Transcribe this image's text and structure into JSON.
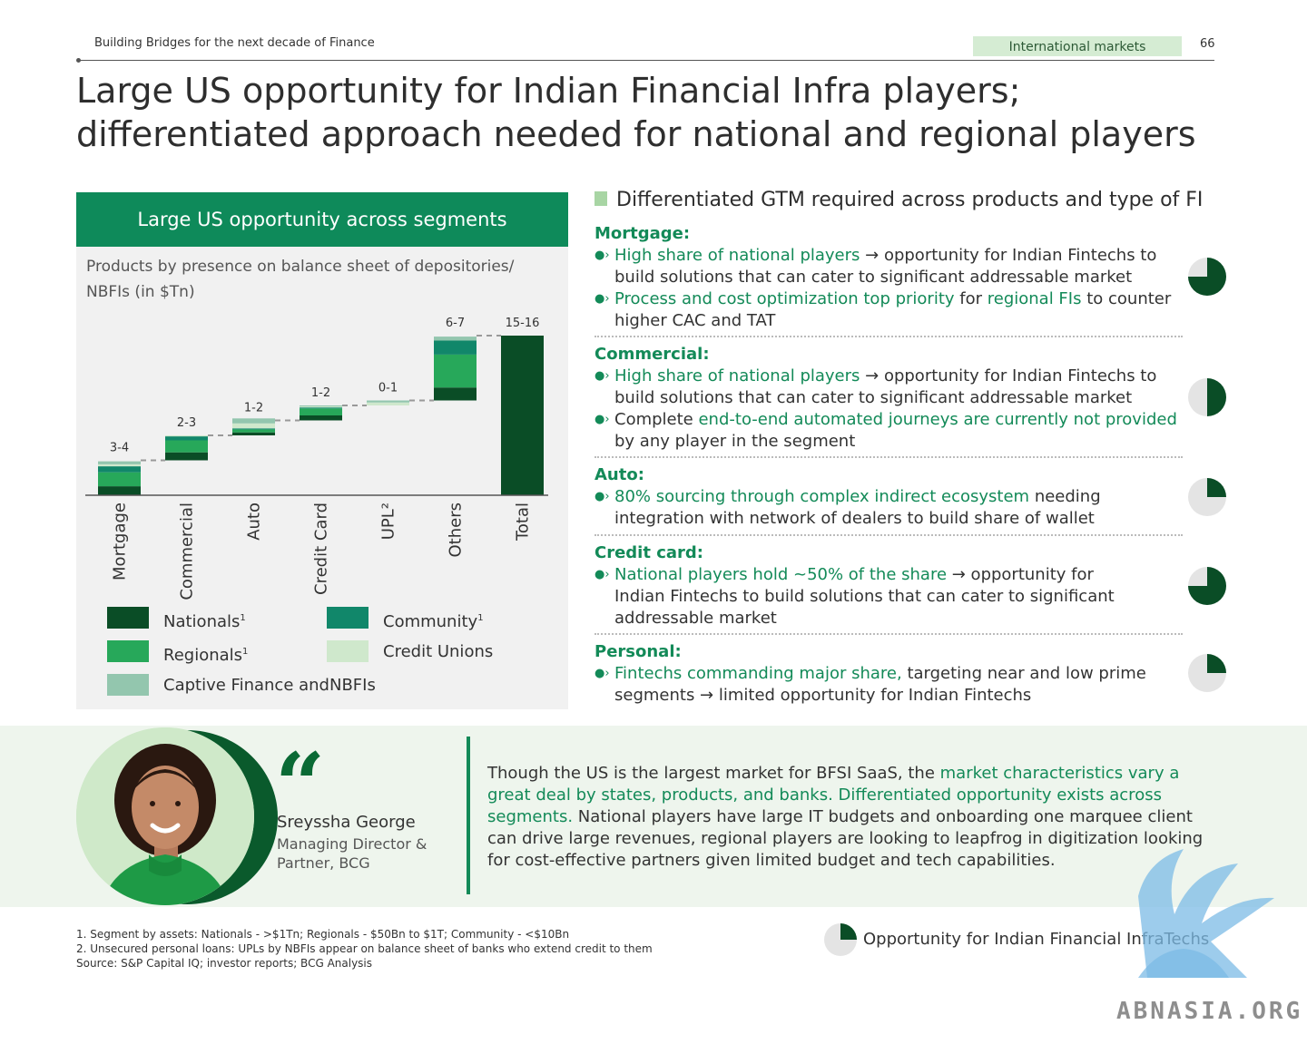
{
  "header": {
    "left": "Building Bridges for the next decade of Finance",
    "tag": "International markets",
    "page_number": "66"
  },
  "title": "Large US opportunity for Indian Financial Infra players; differentiated approach needed for national and regional players",
  "left_panel": {
    "heading": "Large US opportunity across segments",
    "subtitle": "Products by presence on balance sheet of depositories/ NBFIs (in $Tn)",
    "legend": {
      "nationals": "Nationals",
      "community": "Community",
      "regionals": "Regionals",
      "credit_unions": "Credit Unions",
      "captive": "Captive Finance andNBFIs",
      "sup": "1"
    }
  },
  "chart_data": {
    "type": "bar",
    "subtype": "waterfall",
    "categories": [
      "Mortgage",
      "Commercial",
      "Auto",
      "Credit Card",
      "UPL²",
      "Others",
      "Total"
    ],
    "value_labels": [
      "3-4",
      "2-3",
      "1-2",
      "1-2",
      "0-1",
      "6-7",
      "15-16"
    ],
    "values": [
      3.5,
      2.5,
      1.5,
      1.5,
      0.5,
      6.5,
      16
    ],
    "series": [
      {
        "name": "Nationals",
        "color": "#0a4d26",
        "values": [
          0.9,
          0.8,
          0.3,
          0.5,
          0,
          1.3,
          16
        ]
      },
      {
        "name": "Regionals",
        "color": "#27a85a",
        "values": [
          1.4,
          1.2,
          0.3,
          0.7,
          0,
          3.3,
          0
        ]
      },
      {
        "name": "Community",
        "color": "#11876a",
        "values": [
          0.6,
          0.4,
          0.1,
          0.1,
          0,
          1.4,
          0
        ]
      },
      {
        "name": "Credit Unions",
        "color": "#cfe8cc",
        "values": [
          0.2,
          0.1,
          0.5,
          0.1,
          0.3,
          0,
          0
        ]
      },
      {
        "name": "Captive Finance andNBFIs",
        "color": "#93c6ae",
        "values": [
          0.3,
          0,
          0.5,
          0.1,
          0.2,
          0.4,
          0
        ]
      }
    ],
    "ylim": [
      0,
      16
    ]
  },
  "right": {
    "heading": "Differentiated GTM required across products and type of FI",
    "segments": [
      {
        "title": "Mortgage:",
        "pie": 0.75,
        "b1": {
          "g": "High share of national players",
          "t": " → opportunity for Indian Fintechs to build solutions that can cater to significant addressable market"
        },
        "b2": {
          "g1": "Process and cost optimization top priority",
          "t1": " for ",
          "g2": "regional FIs",
          "t2": " to counter higher CAC and TAT"
        }
      },
      {
        "title": "Commercial:",
        "pie": 0.5,
        "b1": {
          "g": "High share of national players",
          "t": " → opportunity for Indian Fintechs to build solutions that can cater to significant addressable market"
        },
        "b2": {
          "t1": "Complete ",
          "g": "end-to-end automated journeys are currently not provided",
          "t2": " by any player in the segment"
        }
      },
      {
        "title": "Auto:",
        "pie": 0.25,
        "b1": {
          "g": "80% sourcing through complex indirect ecosystem",
          "t": " needing integration with network of dealers to build share of wallet"
        }
      },
      {
        "title": "Credit card:",
        "pie": 0.75,
        "b1": {
          "g": "National players hold ~50% of the share",
          "t": " → opportunity for Indian Fintechs to build solutions that can cater to significant addressable market"
        }
      },
      {
        "title": "Personal:",
        "pie": 0.25,
        "b1": {
          "g": "Fintechs commanding major share,",
          "t": " targeting near and low prime segments → limited opportunity for Indian Fintechs"
        }
      }
    ]
  },
  "quote": {
    "name": "Sreyssha George",
    "role": "Managing Director & Partner, BCG",
    "t1": "Though the US is the largest market for BFSI SaaS, the ",
    "g": "market characteristics vary a great deal by states, products, and banks. Differentiated opportunity exists across segments.",
    "t2": " National players have large IT budgets and onboarding one marquee client can drive large revenues, regional players are looking to leapfrog in digitization looking for cost-effective partners given limited budget and tech capabilities."
  },
  "footnotes": [
    "1. Segment by assets: Nationals - >$1Tn; Regionals - $50Bn to $1T; Community - <$10Bn",
    "2. Unsecured personal loans: UPLs by NBFIs appear on balance sheet of banks who extend credit to them",
    "Source: S&P Capital IQ; investor reports; BCG Analysis"
  ],
  "footer_legend": "Opportunity for Indian Financial InfraTechs",
  "watermark": "ABNASIA.ORG",
  "colors": {
    "brand_green": "#0e8a5a",
    "text_green": "#138a58",
    "dark_green": "#0a4d26",
    "pie_grey": "#e4e4e4"
  }
}
